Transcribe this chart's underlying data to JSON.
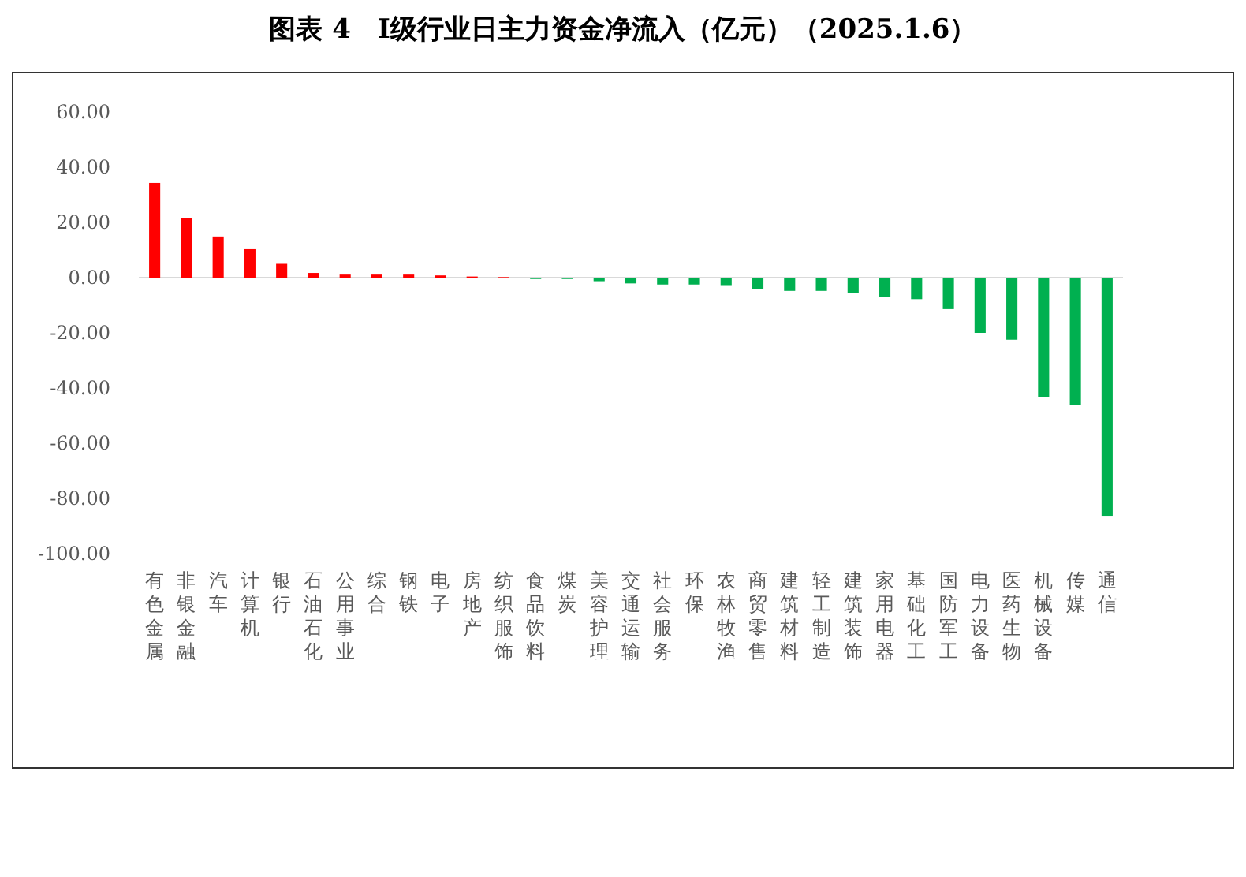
{
  "chart_data": {
    "type": "bar",
    "title": "图表 4　Ⅰ级行业日主力资金净流入（亿元）（2025.1.6）",
    "categories": [
      "有色金属",
      "非银金融",
      "汽车",
      "计算机",
      "银行",
      "石油石化",
      "公用事业",
      "综合",
      "钢铁",
      "电子",
      "房地产",
      "纺织服饰",
      "食品饮料",
      "煤炭",
      "美容护理",
      "交通运输",
      "社会服务",
      "环保",
      "农林牧渔",
      "商贸零售",
      "建筑材料",
      "轻工制造",
      "建筑装饰",
      "家用电器",
      "基础化工",
      "国防军工",
      "电力设备",
      "医药生物",
      "机械设备",
      "传媒",
      "通信"
    ],
    "values": [
      34.3,
      21.7,
      14.9,
      10.3,
      5.0,
      1.7,
      1.1,
      1.1,
      1.1,
      0.8,
      0.4,
      0.2,
      -0.5,
      -0.5,
      -1.3,
      -2.1,
      -2.5,
      -2.5,
      -3.0,
      -4.2,
      -4.8,
      -4.8,
      -5.7,
      -6.9,
      -7.8,
      -11.4,
      -20.0,
      -22.5,
      -43.4,
      -46.1,
      -86.3
    ],
    "colors": [
      "#ff0000",
      "#ff0000",
      "#ff0000",
      "#ff0000",
      "#ff0000",
      "#ff0000",
      "#ff0000",
      "#ff0000",
      "#ff0000",
      "#ff0000",
      "#ff0000",
      "#ff0000",
      "#00b050",
      "#00b050",
      "#00b050",
      "#00b050",
      "#00b050",
      "#00b050",
      "#00b050",
      "#00b050",
      "#00b050",
      "#00b050",
      "#00b050",
      "#00b050",
      "#00b050",
      "#00b050",
      "#00b050",
      "#00b050",
      "#00b050",
      "#00b050",
      "#00b050"
    ],
    "ylim": [
      -100,
      60
    ],
    "yticks": [
      {
        "value": 60,
        "label": "60.00"
      },
      {
        "value": 40,
        "label": "40.00"
      },
      {
        "value": 20,
        "label": "20.00"
      },
      {
        "value": 0,
        "label": "0.00"
      },
      {
        "value": -20,
        "label": "-20.00"
      },
      {
        "value": -40,
        "label": "-40.00"
      },
      {
        "value": -60,
        "label": "-60.00"
      },
      {
        "value": -80,
        "label": "-80.00"
      },
      {
        "value": -100,
        "label": "-100.00"
      }
    ]
  }
}
